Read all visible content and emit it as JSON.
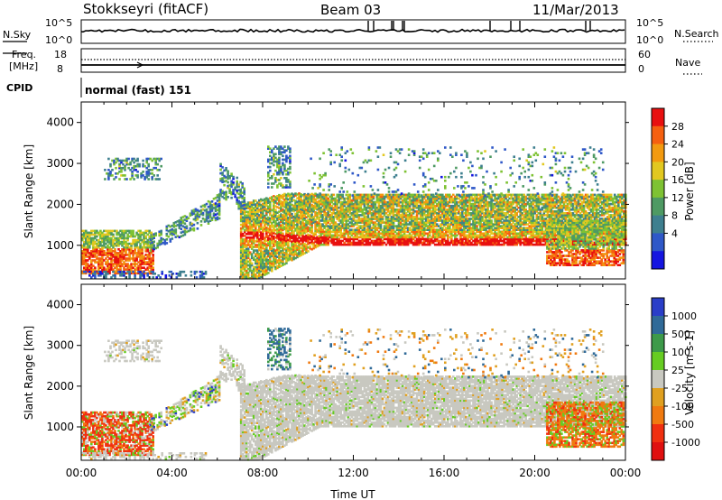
{
  "header": {
    "station": "Stokkseyri (fitACF)",
    "beam": "Beam 03",
    "date": "11/Mar/2013"
  },
  "noise_panel": {
    "left_label": "N.Sky",
    "right_label": "N.Search",
    "left_ticks": [
      "10^5",
      "10^0"
    ],
    "right_ticks": [
      "10^5",
      "10^0"
    ]
  },
  "freq_panel": {
    "left_label_line1": "Freq.",
    "left_label_line2": "[MHz]",
    "left_ticks": [
      "18",
      "8"
    ],
    "right_label": "Nave",
    "right_ticks": [
      "60",
      "0"
    ]
  },
  "cpid": {
    "label": "CPID",
    "value": "normal (fast) 151"
  },
  "chart_data": [
    {
      "type": "heatmap",
      "title": "",
      "xlabel": "",
      "ylabel": "Slant Range [km]",
      "xlim": [
        "00:00",
        "00:00"
      ],
      "ylim": [
        180,
        4500
      ],
      "yticks": [
        1000,
        2000,
        3000,
        4000
      ],
      "colorbar": {
        "label": "Power [dB]",
        "ticks": [
          4,
          8,
          12,
          16,
          20,
          24,
          28
        ],
        "colors": [
          "#1515e0",
          "#2f58c8",
          "#3e7f8f",
          "#4e9a63",
          "#7ec233",
          "#e2c820",
          "#f29a10",
          "#f56010",
          "#e81010"
        ],
        "range": [
          0,
          30
        ]
      }
    },
    {
      "type": "heatmap",
      "title": "",
      "xlabel": "Time UT",
      "ylabel": "Slant Range [km]",
      "xticks": [
        "00:00",
        "04:00",
        "08:00",
        "12:00",
        "16:00",
        "20:00",
        "00:00"
      ],
      "ylim": [
        180,
        4500
      ],
      "yticks": [
        1000,
        2000,
        3000,
        4000
      ],
      "colorbar": {
        "label": "Velocity [m s-1]",
        "ticks": [
          "1000",
          "500",
          "100",
          "25",
          "-25",
          "-100",
          "-500",
          "-1000"
        ],
        "colors": [
          "#2a3ec8",
          "#306a98",
          "#3d9a4a",
          "#66cc22",
          "#c8c8c0",
          "#e0a020",
          "#f07a10",
          "#f03010",
          "#e01010"
        ]
      }
    }
  ]
}
